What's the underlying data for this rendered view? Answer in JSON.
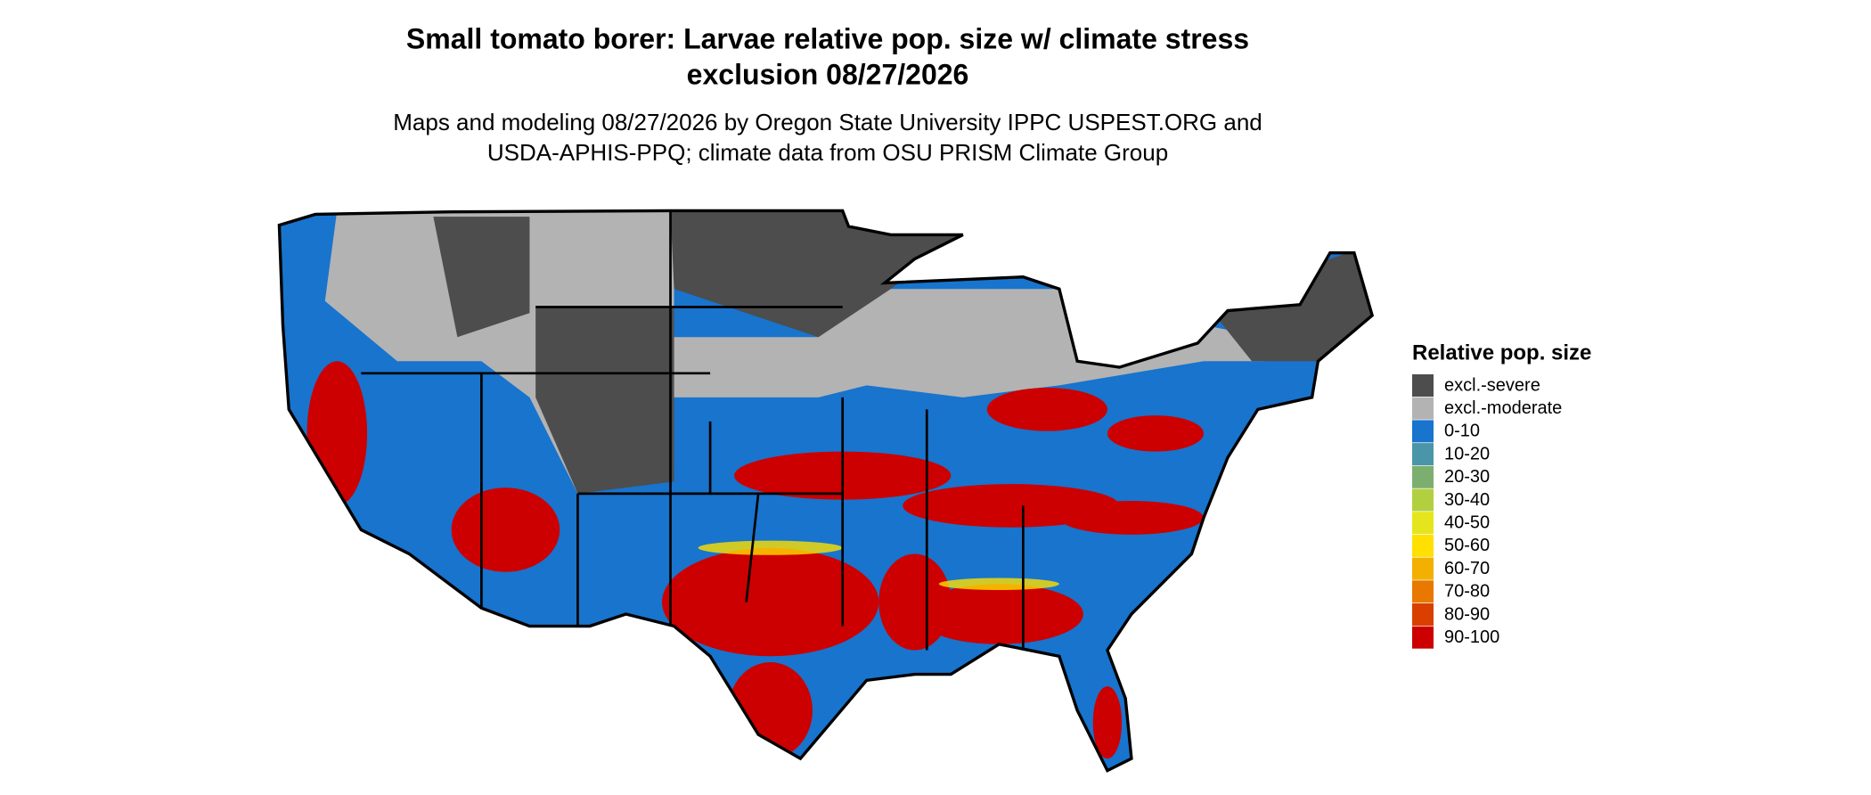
{
  "title": [
    "Small tomato borer: Larvae relative pop. size w/ climate stress",
    "exclusion 08/27/2026"
  ],
  "subtitle": [
    "Maps and modeling 08/27/2026 by Oregon State University IPPC USPEST.ORG and",
    "USDA-APHIS-PPQ; climate data from OSU PRISM Climate Group"
  ],
  "legend": {
    "title": "Relative pop. size",
    "items": [
      {
        "label": "excl.-severe",
        "color": "#4d4d4d"
      },
      {
        "label": "excl.-moderate",
        "color": "#b3b3b3"
      },
      {
        "label": "0-10",
        "color": "#1874cd"
      },
      {
        "label": "10-20",
        "color": "#4a95a8"
      },
      {
        "label": "20-30",
        "color": "#7caf6f"
      },
      {
        "label": "30-40",
        "color": "#b2cf3f"
      },
      {
        "label": "40-50",
        "color": "#e5e51e"
      },
      {
        "label": "50-60",
        "color": "#ffe000"
      },
      {
        "label": "60-70",
        "color": "#f3b000"
      },
      {
        "label": "70-80",
        "color": "#e87800"
      },
      {
        "label": "80-90",
        "color": "#d94000"
      },
      {
        "label": "90-100",
        "color": "#cc0000"
      }
    ]
  }
}
